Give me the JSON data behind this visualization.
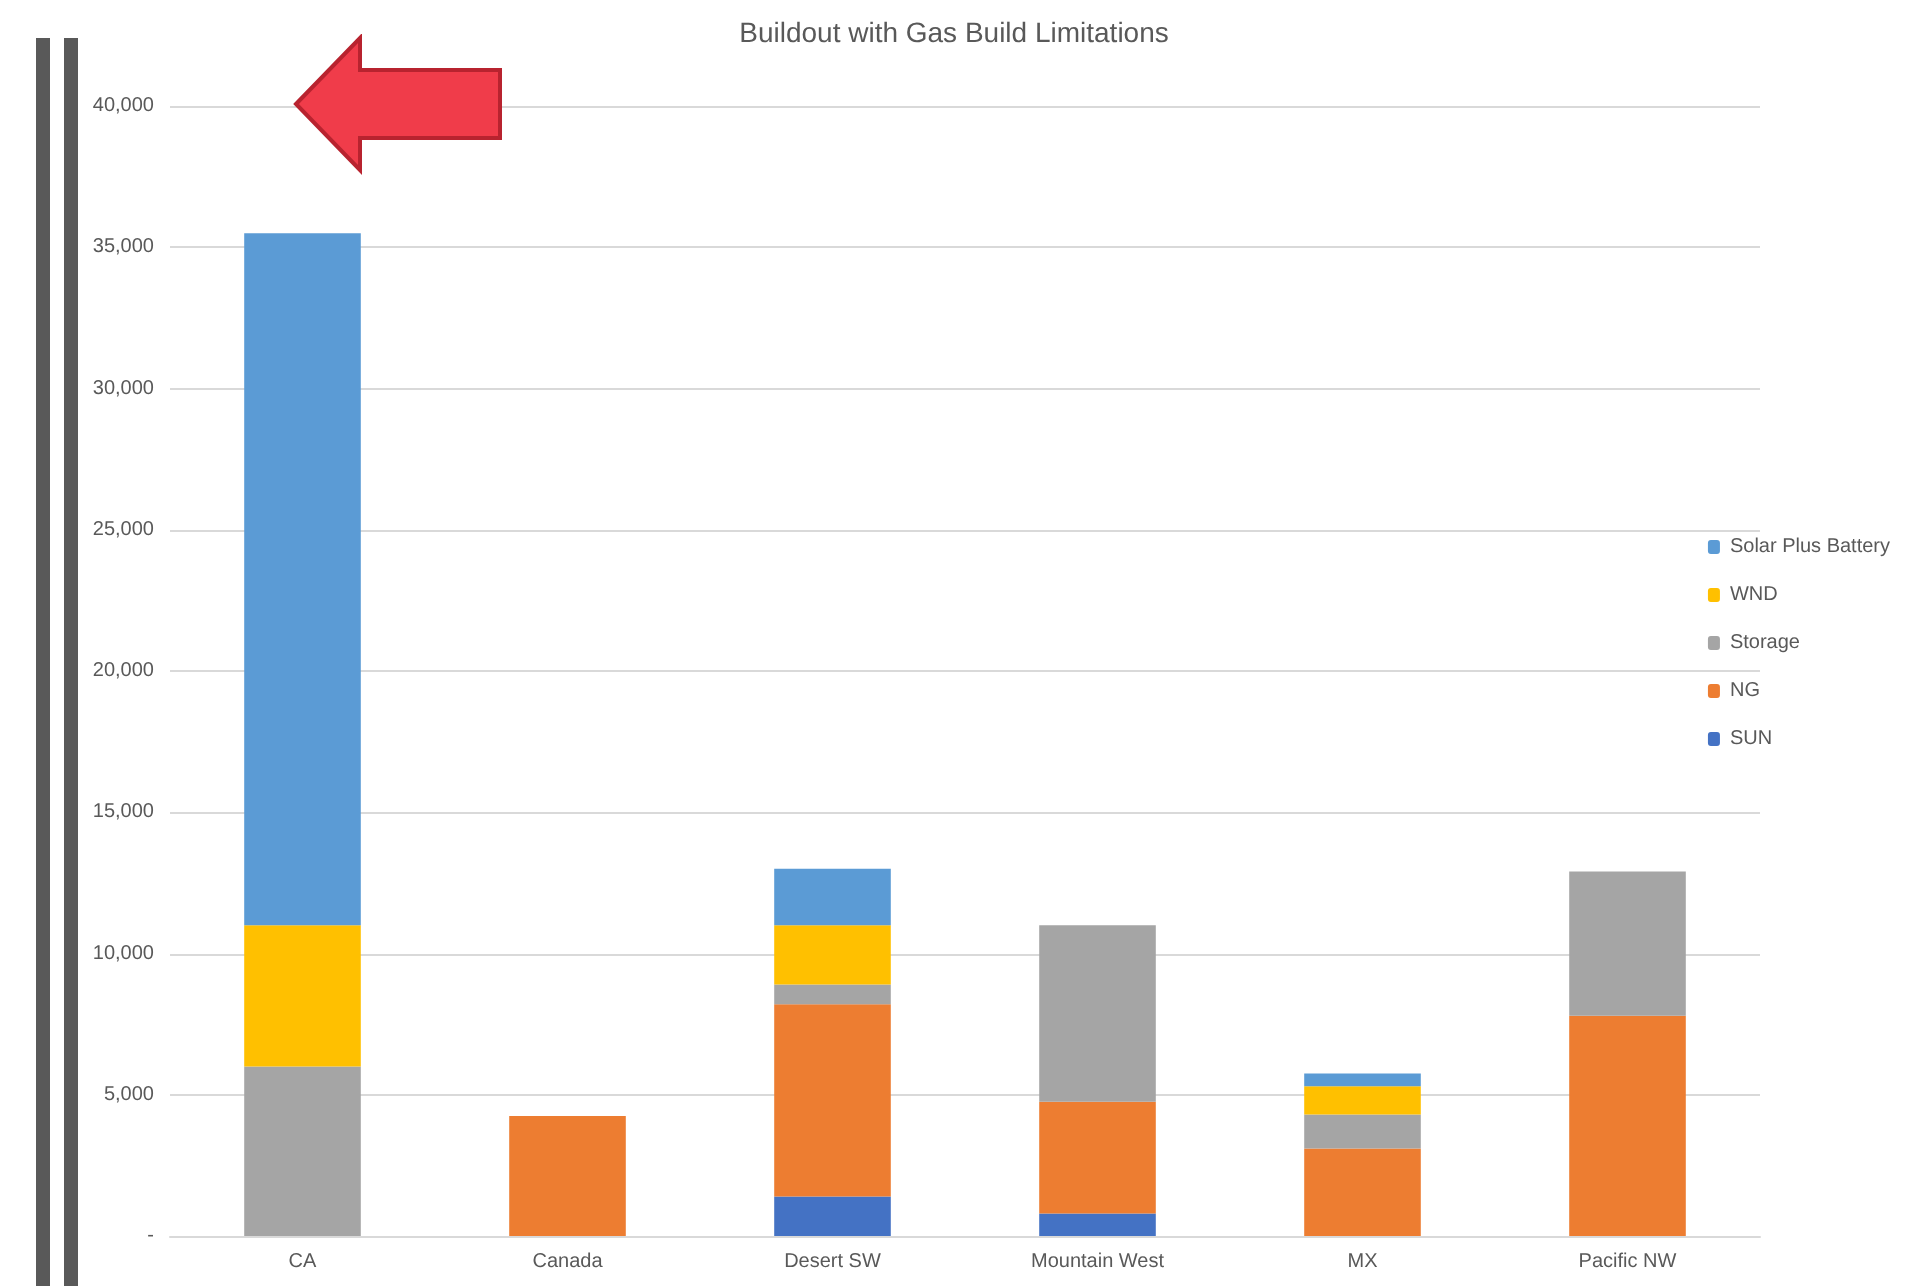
{
  "chart_data": {
    "type": "bar",
    "title": "Buildout with Gas Build Limitations",
    "stacked": true,
    "categories": [
      "CA",
      "Canada",
      "Desert SW",
      "Mountain West",
      "MX",
      "Pacific NW"
    ],
    "series": [
      {
        "name": "SUN",
        "color": "#4472c4",
        "values": [
          0,
          0,
          1400,
          800,
          0,
          0
        ]
      },
      {
        "name": "NG",
        "color": "#ed7d31",
        "values": [
          0,
          4250,
          6800,
          3950,
          3100,
          7800
        ]
      },
      {
        "name": "Storage",
        "color": "#a5a5a5",
        "values": [
          6000,
          0,
          700,
          6250,
          1200,
          5100
        ]
      },
      {
        "name": "WND",
        "color": "#ffc000",
        "values": [
          5000,
          0,
          2100,
          0,
          1000,
          0
        ]
      },
      {
        "name": "Solar Plus Battery",
        "color": "#5b9bd5",
        "values": [
          24500,
          0,
          2000,
          0,
          450,
          0
        ]
      }
    ],
    "ylim": [
      0,
      40000
    ],
    "yticks": [
      {
        "value": 0,
        "label": "-"
      },
      {
        "value": 5000,
        "label": "5,000"
      },
      {
        "value": 10000,
        "label": "10,000"
      },
      {
        "value": 15000,
        "label": "15,000"
      },
      {
        "value": 20000,
        "label": "20,000"
      },
      {
        "value": 25000,
        "label": "25,000"
      },
      {
        "value": 30000,
        "label": "30,000"
      },
      {
        "value": 35000,
        "label": "35,000"
      },
      {
        "value": 40000,
        "label": "40,000"
      }
    ],
    "grid": "y",
    "legend": "right"
  }
}
